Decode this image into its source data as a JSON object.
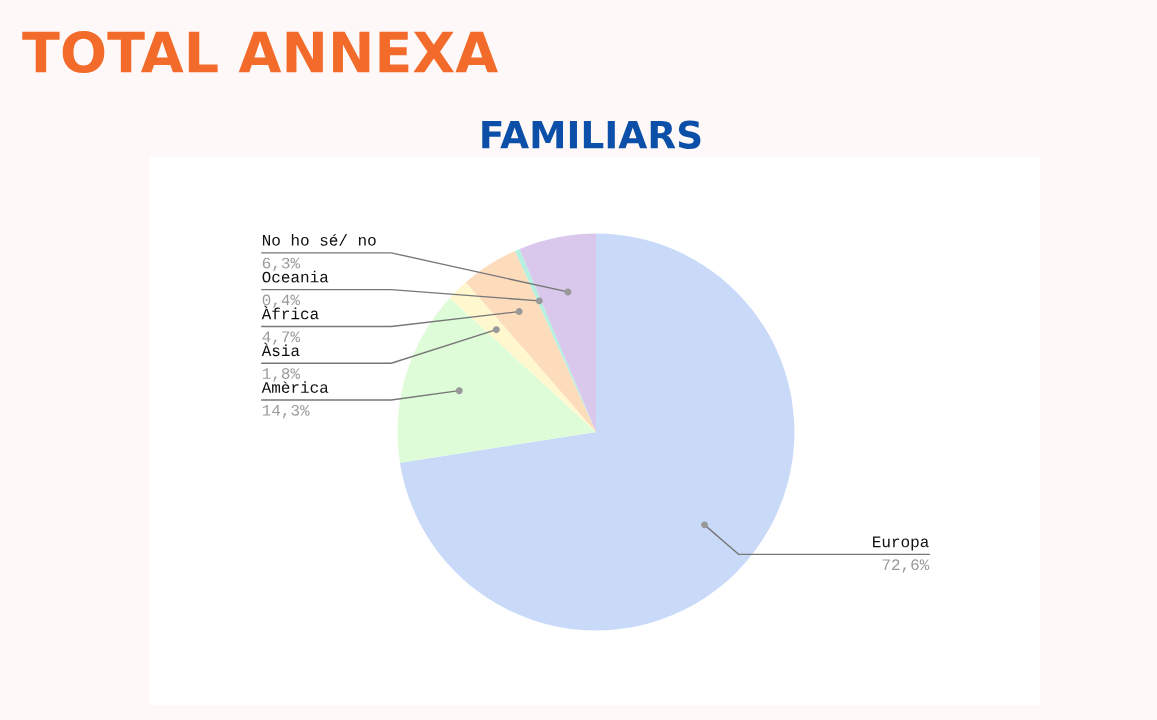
{
  "chart_data": {
    "type": "pie",
    "title": "TOTAL ANNEXA",
    "subtitle": "FAMILIARS",
    "categories": [
      "Europa",
      "Amèrica",
      "Àsia",
      "Àfrica",
      "Oceania",
      "No ho sé/ no"
    ],
    "values": [
      72.6,
      14.3,
      1.8,
      4.7,
      0.4,
      6.3
    ],
    "value_labels": [
      "72,6%",
      "14,3%",
      "1,8%",
      "4,7%",
      "0,4%",
      "6,3%"
    ],
    "colors": [
      "#c9daf8",
      "#dffcd9",
      "#fff8cf",
      "#fcdcbb",
      "#b5efe0",
      "#d9c8ec"
    ],
    "legend": false
  }
}
